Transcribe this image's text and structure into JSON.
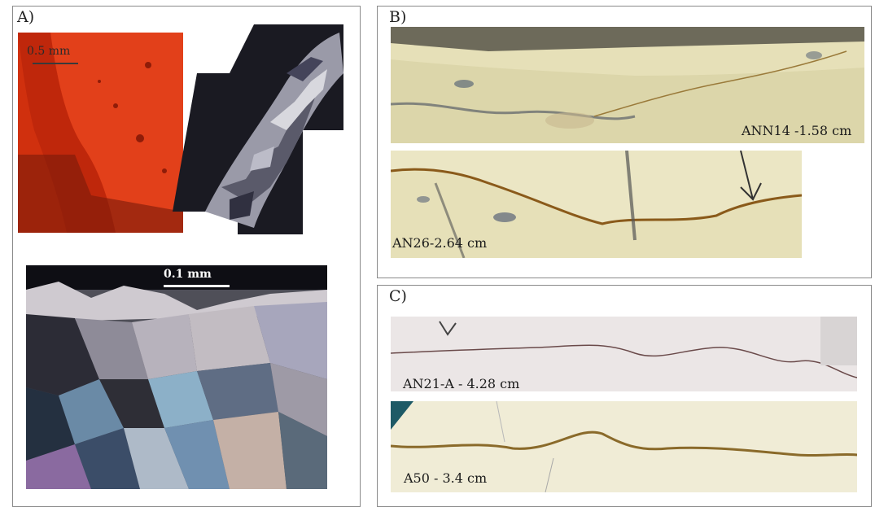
{
  "panels": {
    "a": {
      "label": "A)",
      "scale_top": "0.5 mm",
      "scale_bottom": "0.1 mm"
    },
    "b": {
      "label": "B)",
      "sample_1": "ANN14 -1.58 cm",
      "sample_2": "AN26-2.64 cm"
    },
    "c": {
      "label": "C)",
      "sample_1": "AN21-A - 4.28 cm",
      "sample_2": "A50 - 3.4 cm"
    }
  }
}
